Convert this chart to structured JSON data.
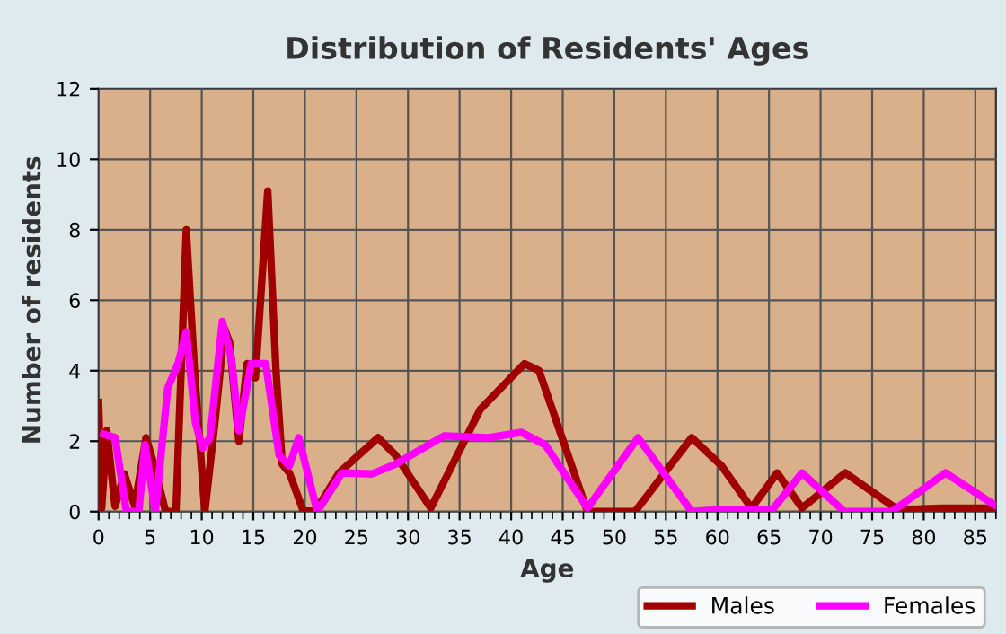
{
  "chart_data": {
    "type": "line",
    "title": "Distribution of Residents' Ages",
    "xlabel": "Age",
    "ylabel": "Number of residents",
    "xlim": [
      0,
      87
    ],
    "xticks": [
      0,
      5,
      10,
      15,
      20,
      25,
      30,
      35,
      40,
      45,
      50,
      55,
      60,
      65,
      70,
      75,
      80,
      85
    ],
    "ylim": [
      0,
      12
    ],
    "yticks": [
      0,
      2,
      4,
      6,
      8,
      10,
      12
    ],
    "grid": true,
    "legend": "bottom right",
    "marker": "none",
    "line_style": "solid",
    "series": [
      {
        "name": "Males",
        "color": "#a00000",
        "x": [
          0,
          0.3,
          0.8,
          1.6,
          2.5,
          3.5,
          4.6,
          5.3,
          6.5,
          7.5,
          8.5,
          9.3,
          10.3,
          11.3,
          12.2,
          12.7,
          13.6,
          14.4,
          15.2,
          16.4,
          17.2,
          17.8,
          18.5,
          19.8,
          21,
          23.3,
          27.1,
          28.8,
          32.2,
          37,
          41.3,
          42.7,
          47.4,
          52,
          57.5,
          60.4,
          63.3,
          65.8,
          68.2,
          72.4,
          77.5,
          81.6,
          86.8
        ],
        "values": [
          3.1,
          0.1,
          2.3,
          0.15,
          1.07,
          0.15,
          2.1,
          1.4,
          0,
          0,
          8,
          4,
          0,
          2.6,
          5.2,
          4.8,
          2,
          4.2,
          3.8,
          9.1,
          4,
          1.35,
          1.1,
          0.05,
          0,
          1.1,
          2.1,
          1.6,
          0.1,
          2.9,
          4.2,
          4,
          0,
          0,
          2.1,
          1.3,
          0.1,
          1.1,
          0.1,
          1.1,
          0.05,
          0.1,
          0.1
        ]
      },
      {
        "name": "Females",
        "color": "#ff00ff",
        "x": [
          0.5,
          1.6,
          2.7,
          3.9,
          4.5,
          5.5,
          6.7,
          7.7,
          8.5,
          9.4,
          10.1,
          10.8,
          12,
          12.9,
          13.6,
          14.8,
          16.2,
          17.5,
          18.5,
          19.4,
          21.2,
          23.6,
          26.5,
          28.8,
          33.5,
          37.8,
          41,
          43.3,
          47.4,
          52.3,
          57.5,
          60.2,
          65.3,
          68.2,
          72.3,
          76.9,
          82.1,
          86.8
        ],
        "values": [
          2.2,
          2.1,
          0,
          0,
          1.9,
          0,
          3.5,
          4.2,
          5.1,
          2.5,
          1.8,
          2.1,
          5.4,
          4.3,
          2.3,
          4.2,
          4.2,
          1.6,
          1.3,
          2.1,
          0,
          1.1,
          1.07,
          1.35,
          2.15,
          2.1,
          2.25,
          1.9,
          0.1,
          2.1,
          0,
          0.05,
          0.05,
          1.1,
          0,
          0,
          1.1,
          0.2
        ]
      }
    ]
  }
}
